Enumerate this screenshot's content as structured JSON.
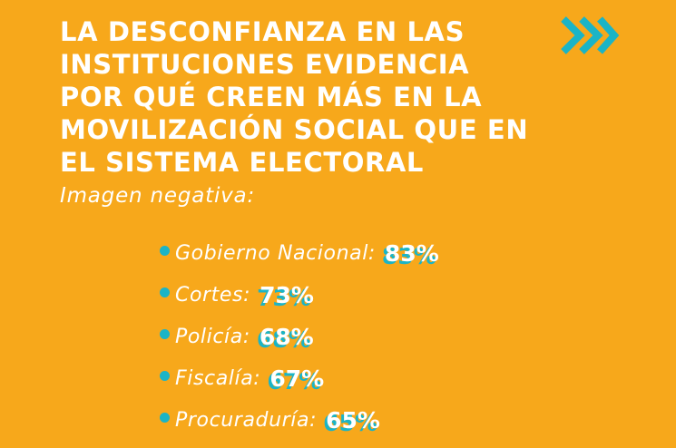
{
  "header": {
    "title_lines": [
      "LA DESCONFIANZA EN LAS",
      "INSTITUCIONES EVIDENCIA",
      "POR QUÉ CREEN MÁS EN LA",
      "MOVILIZACIÓN SOCIAL QUE EN",
      "EL SISTEMA ELECTORAL"
    ],
    "subtitle": "Imagen negativa:"
  },
  "items": [
    {
      "label": "Gobierno Nacional:",
      "value": "83%"
    },
    {
      "label": "Cortes:",
      "value": "73%"
    },
    {
      "label": "Policía:",
      "value": "68%"
    },
    {
      "label": "Fiscalía:",
      "value": "67%"
    },
    {
      "label": "Procuraduría:",
      "value": "65%"
    }
  ]
}
